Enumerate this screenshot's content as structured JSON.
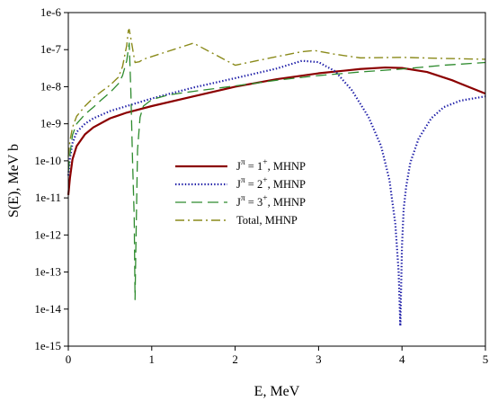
{
  "chart_data": {
    "type": "line",
    "xlabel": "E, MeV",
    "ylabel": "S(E), MeV b",
    "xlim": [
      0,
      5
    ],
    "ylim": [
      1e-15,
      1e-06
    ],
    "yscale": "log",
    "x_ticks": [
      0,
      1,
      2,
      3,
      4,
      5
    ],
    "y_ticks": [
      "1e-15",
      "1e-14",
      "1e-13",
      "1e-12",
      "1e-11",
      "1e-10",
      "1e-9",
      "1e-8",
      "1e-7",
      "1e-6"
    ],
    "legend_position": "center-left",
    "series": [
      {
        "name_prefix": "J",
        "name_sup": "π",
        "name_mid": " = 1",
        "name_sup2": "+",
        "name_suffix": ", MHNP",
        "color": "#8b0000",
        "style": "solid",
        "x": [
          0.0,
          0.02,
          0.05,
          0.1,
          0.2,
          0.3,
          0.5,
          0.7,
          1.0,
          1.5,
          2.0,
          2.5,
          3.0,
          3.5,
          3.8,
          4.0,
          4.3,
          4.6,
          5.0
        ],
        "y": [
          1.2e-11,
          3.5e-11,
          1.1e-10,
          2.5e-10,
          5.2e-10,
          8e-10,
          1.4e-09,
          2e-09,
          3e-09,
          5.5e-09,
          1e-08,
          1.6e-08,
          2.3e-08,
          3e-08,
          3.3e-08,
          3.2e-08,
          2.5e-08,
          1.5e-08,
          6.5e-09
        ]
      },
      {
        "name_prefix": "J",
        "name_sup": "π",
        "name_mid": " = 2",
        "name_sup2": "+",
        "name_suffix": ", MHNP",
        "color": "#1f1fa8",
        "style": "dotted",
        "x": [
          0.0,
          0.02,
          0.05,
          0.1,
          0.2,
          0.3,
          0.5,
          0.7,
          1.0,
          1.5,
          2.0,
          2.5,
          2.8,
          3.0,
          3.2,
          3.4,
          3.6,
          3.75,
          3.85,
          3.92,
          3.96,
          3.98,
          4.0,
          4.02,
          4.05,
          4.1,
          4.2,
          4.35,
          4.5,
          4.7,
          5.0
        ],
        "y": [
          4e-11,
          1.2e-10,
          3e-10,
          6e-10,
          1e-09,
          1.4e-09,
          2.2e-09,
          3e-09,
          4.8e-09,
          9.5e-09,
          1.7e-08,
          3.1e-08,
          5e-08,
          4.6e-08,
          2.6e-08,
          8e-09,
          1.5e-09,
          2.5e-10,
          3e-11,
          2e-12,
          1e-13,
          3.5e-15,
          5e-13,
          5e-12,
          2e-11,
          9e-11,
          4e-10,
          1.4e-09,
          2.8e-09,
          4.2e-09,
          5.5e-09
        ]
      },
      {
        "name_prefix": "J",
        "name_sup": "π",
        "name_mid": " = 3",
        "name_sup2": "+",
        "name_suffix": ", MHNP",
        "color": "#2e8b2e",
        "style": "dashed",
        "x": [
          0.0,
          0.02,
          0.05,
          0.1,
          0.2,
          0.3,
          0.4,
          0.5,
          0.6,
          0.65,
          0.7,
          0.73,
          0.75,
          0.77,
          0.79,
          0.8,
          0.81,
          0.83,
          0.86,
          0.9,
          1.0,
          1.2,
          1.5,
          2.0,
          2.5,
          3.0,
          3.5,
          4.0,
          4.5,
          5.0
        ],
        "y": [
          5e-11,
          1.5e-10,
          5e-10,
          1e-09,
          1.8e-09,
          2.8e-09,
          4.5e-09,
          7e-09,
          1.2e-08,
          2e-08,
          5e-08,
          1.5e-07,
          7e-09,
          1e-10,
          3e-12,
          1.8e-14,
          5e-13,
          2e-10,
          1.5e-09,
          3e-09,
          4.5e-09,
          6e-09,
          7.5e-09,
          1.05e-08,
          1.5e-08,
          2e-08,
          2.5e-08,
          3e-08,
          3.8e-08,
          4.5e-08
        ]
      },
      {
        "name": "Total, MHNP",
        "color": "#8a8a1a",
        "style": "dashdot",
        "x": [
          0.0,
          0.02,
          0.05,
          0.1,
          0.2,
          0.3,
          0.4,
          0.5,
          0.6,
          0.65,
          0.7,
          0.72,
          0.73,
          0.75,
          0.78,
          0.8,
          0.85,
          0.9,
          1.0,
          1.5,
          2.0,
          2.5,
          2.8,
          2.95,
          3.2,
          3.5,
          4.0,
          4.5,
          5.0
        ],
        "y": [
          1.3e-10,
          3.5e-10,
          8e-10,
          1.6e-09,
          3e-09,
          5e-09,
          7.5e-09,
          1.1e-08,
          1.8e-08,
          3.5e-08,
          1.3e-07,
          3.3e-07,
          3.5e-07,
          2e-07,
          8e-08,
          4.5e-08,
          4.7e-08,
          5.5e-08,
          6.5e-08,
          1.5e-07,
          3.8e-08,
          6.5e-08,
          8.8e-08,
          9.5e-08,
          7.5e-08,
          6e-08,
          6.2e-08,
          5.8e-08,
          5.5e-08
        ]
      }
    ]
  }
}
